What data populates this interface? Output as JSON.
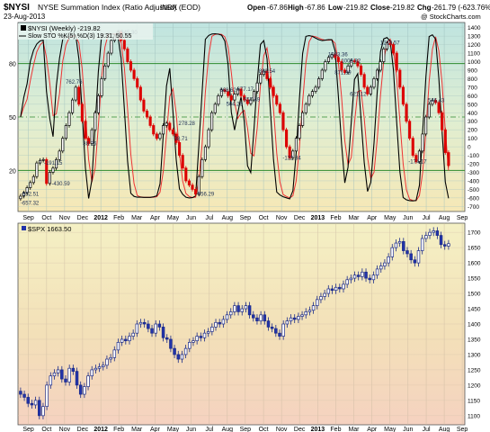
{
  "header": {
    "symbol": "$NYSI",
    "description": "NYSE Summation Index (Ratio Adjusted) (EOD)",
    "exchange": "INDX",
    "date": "23-Aug-2013",
    "copyright": "@ StockCharts.com",
    "open_label": "Open",
    "open_value": "-67.86",
    "high_label": "High",
    "high_value": "-67.86",
    "low_label": "Low",
    "low_value": "-219.82",
    "close_label": "Close",
    "close_value": "-219.82",
    "chg_label": "Chg",
    "chg_value": "-261.79 (-623.76%)"
  },
  "colors": {
    "up": "#000000",
    "down": "#dd0000",
    "slow_k": "#000000",
    "slow_d": "#ee3333",
    "spx_up": "#ffffff",
    "spx_down": "#2233aa",
    "grid_green": "#2e8b2e"
  },
  "chart_data": [
    {
      "type": "candlestick+line",
      "title": "$NYSI (Weekly) -219.82",
      "legend": [
        "$NYSI (Weekly) -219.82",
        "Slow STO %K(5) %D(3) 19.31, 50.55"
      ],
      "legend_position": "top-left",
      "y_right_ticks": [
        1400,
        1300,
        1200,
        1100,
        1000,
        900,
        800,
        700,
        600,
        500,
        400,
        300,
        200,
        100,
        0,
        -100,
        -200,
        -300,
        -400,
        -500,
        -600,
        -700
      ],
      "y_left_ticks": [
        80,
        50,
        20
      ],
      "ylim": [
        -760,
        1460
      ],
      "stochastic_range": [
        0,
        100
      ],
      "x_labels": [
        "Sep",
        "Oct",
        "Nov",
        "Dec",
        "2012",
        "Feb",
        "Mar",
        "Apr",
        "May",
        "Jun",
        "Jul",
        "Aug",
        "Sep",
        "Oct",
        "Nov",
        "Dec",
        "2013",
        "Feb",
        "Mar",
        "Apr",
        "May",
        "Jun",
        "Jul",
        "Aug",
        "Sep"
      ],
      "x_label_dates": [
        2011.708,
        2011.792,
        2011.875,
        2011.958,
        2012.042,
        2012.125,
        2012.208,
        2012.292,
        2012.375,
        2012.458,
        2012.542,
        2012.625,
        2012.708,
        2012.792,
        2012.875,
        2012.958,
        2013.042,
        2013.125,
        2013.208,
        2013.292,
        2013.375,
        2013.458,
        2013.542,
        2013.625,
        2013.708
      ],
      "x_range": [
        2011.66,
        2013.72
      ],
      "weekly_close": [
        -580,
        -540,
        -480,
        -420,
        -350,
        -190,
        -160,
        -150,
        -431,
        -300,
        -250,
        -150,
        -50,
        100,
        250,
        400,
        550,
        700,
        500,
        300,
        100,
        38,
        200,
        400,
        600,
        800,
        950,
        1100,
        1250,
        1300,
        1345,
        1250,
        1150,
        1000,
        900,
        800,
        700,
        550,
        420,
        350,
        250,
        150,
        98,
        150,
        250,
        278,
        200,
        150,
        50,
        -100,
        -250,
        -400,
        -450,
        -500,
        -557,
        -350,
        -150,
        0,
        200,
        400,
        500,
        600,
        669,
        650,
        600,
        550,
        620,
        677,
        600,
        550,
        507,
        550,
        650,
        750,
        850,
        888,
        800,
        700,
        600,
        500,
        400,
        200,
        0,
        -132,
        -50,
        100,
        250,
        400,
        500,
        600,
        650,
        700,
        800,
        900,
        1000,
        1050,
        1083,
        1050,
        1000,
        900,
        872,
        950,
        1010,
        1000,
        950,
        850,
        700,
        621,
        700,
        800,
        900,
        1000,
        1150,
        1219,
        1200,
        1100,
        900,
        700,
        500,
        300,
        100,
        -100,
        -174,
        -50,
        150,
        350,
        500,
        546,
        520,
        400,
        200,
        -68,
        -220
      ],
      "annotations": [
        {
          "label": "-552.51",
          "x": 2011.672,
          "y": -552.51
        },
        {
          "label": "-191.15",
          "x": 2011.78,
          "y": -191.15
        },
        {
          "label": "-430.59",
          "x": 2011.815,
          "y": -430.59
        },
        {
          "label": "-657.32",
          "x": 2011.672,
          "y": -657.32
        },
        {
          "label": "762.76",
          "x": 2011.88,
          "y": 762.76
        },
        {
          "label": "38.26",
          "x": 2011.96,
          "y": 38.26
        },
        {
          "label": "1345.30",
          "x": 2012.12,
          "y": 1345.3
        },
        {
          "label": "98.71",
          "x": 2012.38,
          "y": 98.71
        },
        {
          "label": "278.28",
          "x": 2012.4,
          "y": 278.28
        },
        {
          "label": "-556.29",
          "x": 2012.48,
          "y": -556.29
        },
        {
          "label": "668.62",
          "x": 2012.59,
          "y": 668.62
        },
        {
          "label": "677.17",
          "x": 2012.67,
          "y": 677.17
        },
        {
          "label": "504.29",
          "x": 2012.62,
          "y": 504.29
        },
        {
          "label": "557.49",
          "x": 2012.7,
          "y": 557.49
        },
        {
          "label": "888.54",
          "x": 2012.77,
          "y": 888.54
        },
        {
          "label": "-132.34",
          "x": 2012.88,
          "y": -132.34
        },
        {
          "label": "1083.36",
          "x": 2013.09,
          "y": 1083.36
        },
        {
          "label": "1009.82",
          "x": 2013.15,
          "y": 1009.82
        },
        {
          "label": "871.99",
          "x": 2013.12,
          "y": 871.99
        },
        {
          "label": "621.12",
          "x": 2013.19,
          "y": 621.12
        },
        {
          "label": "1219.57",
          "x": 2013.33,
          "y": 1219.57
        },
        {
          "label": "546.43",
          "x": 2013.55,
          "y": 546.43
        },
        {
          "label": "-174.17",
          "x": 2013.46,
          "y": -174.17
        }
      ]
    },
    {
      "type": "candlestick",
      "title": "$SPX 1663.50",
      "legend": [
        "$SPX 1663.50"
      ],
      "legend_position": "top-left",
      "y_right_ticks": [
        1700,
        1650,
        1600,
        1550,
        1500,
        1450,
        1400,
        1350,
        1300,
        1250,
        1200,
        1150,
        1100
      ],
      "ylim": [
        1070,
        1730
      ],
      "x_labels": [
        "Sep",
        "Oct",
        "Nov",
        "Dec",
        "2012",
        "Feb",
        "Mar",
        "Apr",
        "May",
        "Jun",
        "Jul",
        "Aug",
        "Sep",
        "Oct",
        "Nov",
        "Dec",
        "2013",
        "Feb",
        "Mar",
        "Apr",
        "May",
        "Jun",
        "Jul",
        "Aug",
        "Sep"
      ],
      "x_range": [
        2011.66,
        2013.72
      ],
      "weekly_close": [
        1170,
        1160,
        1140,
        1135,
        1150,
        1100,
        1130,
        1200,
        1230,
        1240,
        1250,
        1220,
        1210,
        1255,
        1245,
        1200,
        1170,
        1195,
        1230,
        1250,
        1255,
        1260,
        1265,
        1285,
        1290,
        1315,
        1340,
        1350,
        1345,
        1360,
        1370,
        1400,
        1405,
        1400,
        1385,
        1370,
        1400,
        1390,
        1355,
        1350,
        1320,
        1300,
        1285,
        1300,
        1320,
        1340,
        1345,
        1360,
        1355,
        1370,
        1375,
        1390,
        1405,
        1400,
        1415,
        1430,
        1440,
        1460,
        1440,
        1450,
        1460,
        1430,
        1420,
        1410,
        1430,
        1410,
        1390,
        1385,
        1370,
        1360,
        1400,
        1410,
        1420,
        1415,
        1425,
        1430,
        1440,
        1445,
        1460,
        1480,
        1490,
        1500,
        1515,
        1510,
        1520,
        1515,
        1530,
        1545,
        1550,
        1560,
        1555,
        1570,
        1550,
        1545,
        1560,
        1580,
        1590,
        1600,
        1620,
        1650,
        1665,
        1670,
        1640,
        1630,
        1610,
        1600,
        1640,
        1680,
        1690,
        1700,
        1705,
        1690,
        1660,
        1655,
        1663
      ]
    }
  ],
  "spx_weekly_close_note": "",
  "price_axis_labels": [
    "1700",
    "1650",
    "1600",
    "1550",
    "1500",
    "1450",
    "1400",
    "1350",
    "1300",
    "1250",
    "1200",
    "1150",
    "1100"
  ]
}
